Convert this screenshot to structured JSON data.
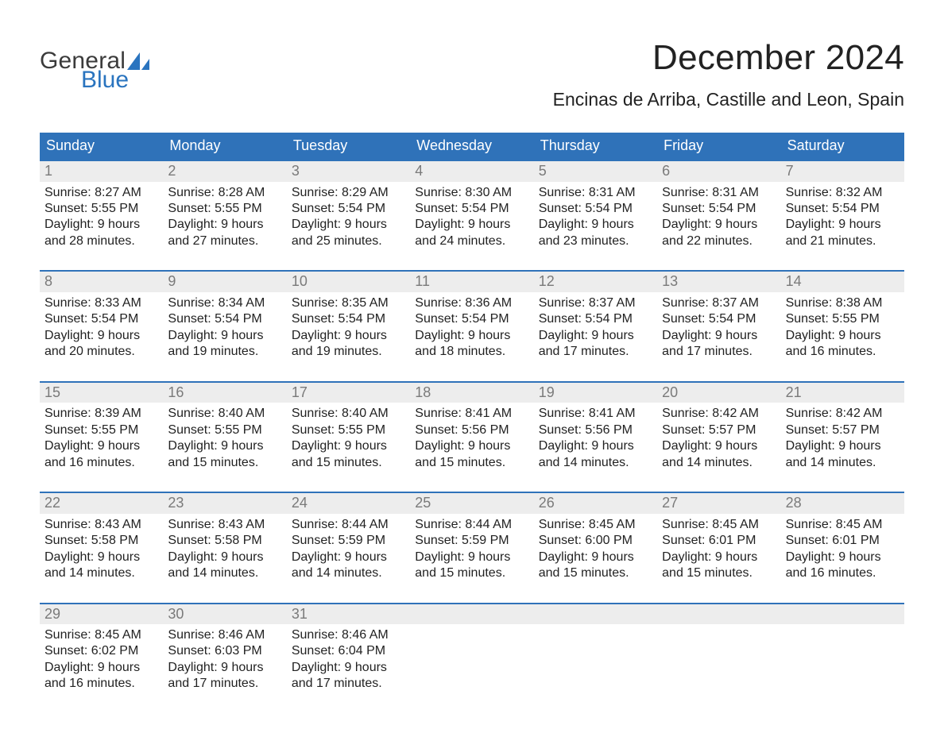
{
  "brand": {
    "logo_word_top": "General",
    "logo_word_bottom": "Blue",
    "logo_top_color": "#3b3b3b",
    "logo_bottom_color": "#2a74bf",
    "logo_triangle_color": "#2a74bf"
  },
  "header": {
    "month_title": "December 2024",
    "location": "Encinas de Arriba, Castille and Leon, Spain",
    "title_fontsize_pt": 33,
    "location_fontsize_pt": 17
  },
  "calendar": {
    "type": "table",
    "header_bg": "#2f72b9",
    "header_fg": "#ffffff",
    "week_rule_color": "#2f72b9",
    "daynum_bg": "#ededed",
    "daynum_fg": "#7a7a7a",
    "body_fg": "#222222",
    "background_color": "#ffffff",
    "body_fontsize_pt": 12,
    "header_fontsize_pt": 14,
    "daynum_fontsize_pt": 14,
    "columns": [
      "Sunday",
      "Monday",
      "Tuesday",
      "Wednesday",
      "Thursday",
      "Friday",
      "Saturday"
    ],
    "labels": {
      "sunrise_prefix": "Sunrise: ",
      "sunset_prefix": "Sunset: ",
      "daylight_prefix": "Daylight: ",
      "and_word": "and ",
      "minutes_suffix": " minutes."
    },
    "weeks": [
      [
        {
          "n": "1",
          "sunrise": "8:27 AM",
          "sunset": "5:55 PM",
          "dl_h": "9 hours",
          "dl_m": "28"
        },
        {
          "n": "2",
          "sunrise": "8:28 AM",
          "sunset": "5:55 PM",
          "dl_h": "9 hours",
          "dl_m": "27"
        },
        {
          "n": "3",
          "sunrise": "8:29 AM",
          "sunset": "5:54 PM",
          "dl_h": "9 hours",
          "dl_m": "25"
        },
        {
          "n": "4",
          "sunrise": "8:30 AM",
          "sunset": "5:54 PM",
          "dl_h": "9 hours",
          "dl_m": "24"
        },
        {
          "n": "5",
          "sunrise": "8:31 AM",
          "sunset": "5:54 PM",
          "dl_h": "9 hours",
          "dl_m": "23"
        },
        {
          "n": "6",
          "sunrise": "8:31 AM",
          "sunset": "5:54 PM",
          "dl_h": "9 hours",
          "dl_m": "22"
        },
        {
          "n": "7",
          "sunrise": "8:32 AM",
          "sunset": "5:54 PM",
          "dl_h": "9 hours",
          "dl_m": "21"
        }
      ],
      [
        {
          "n": "8",
          "sunrise": "8:33 AM",
          "sunset": "5:54 PM",
          "dl_h": "9 hours",
          "dl_m": "20"
        },
        {
          "n": "9",
          "sunrise": "8:34 AM",
          "sunset": "5:54 PM",
          "dl_h": "9 hours",
          "dl_m": "19"
        },
        {
          "n": "10",
          "sunrise": "8:35 AM",
          "sunset": "5:54 PM",
          "dl_h": "9 hours",
          "dl_m": "19"
        },
        {
          "n": "11",
          "sunrise": "8:36 AM",
          "sunset": "5:54 PM",
          "dl_h": "9 hours",
          "dl_m": "18"
        },
        {
          "n": "12",
          "sunrise": "8:37 AM",
          "sunset": "5:54 PM",
          "dl_h": "9 hours",
          "dl_m": "17"
        },
        {
          "n": "13",
          "sunrise": "8:37 AM",
          "sunset": "5:54 PM",
          "dl_h": "9 hours",
          "dl_m": "17"
        },
        {
          "n": "14",
          "sunrise": "8:38 AM",
          "sunset": "5:55 PM",
          "dl_h": "9 hours",
          "dl_m": "16"
        }
      ],
      [
        {
          "n": "15",
          "sunrise": "8:39 AM",
          "sunset": "5:55 PM",
          "dl_h": "9 hours",
          "dl_m": "16"
        },
        {
          "n": "16",
          "sunrise": "8:40 AM",
          "sunset": "5:55 PM",
          "dl_h": "9 hours",
          "dl_m": "15"
        },
        {
          "n": "17",
          "sunrise": "8:40 AM",
          "sunset": "5:55 PM",
          "dl_h": "9 hours",
          "dl_m": "15"
        },
        {
          "n": "18",
          "sunrise": "8:41 AM",
          "sunset": "5:56 PM",
          "dl_h": "9 hours",
          "dl_m": "15"
        },
        {
          "n": "19",
          "sunrise": "8:41 AM",
          "sunset": "5:56 PM",
          "dl_h": "9 hours",
          "dl_m": "14"
        },
        {
          "n": "20",
          "sunrise": "8:42 AM",
          "sunset": "5:57 PM",
          "dl_h": "9 hours",
          "dl_m": "14"
        },
        {
          "n": "21",
          "sunrise": "8:42 AM",
          "sunset": "5:57 PM",
          "dl_h": "9 hours",
          "dl_m": "14"
        }
      ],
      [
        {
          "n": "22",
          "sunrise": "8:43 AM",
          "sunset": "5:58 PM",
          "dl_h": "9 hours",
          "dl_m": "14"
        },
        {
          "n": "23",
          "sunrise": "8:43 AM",
          "sunset": "5:58 PM",
          "dl_h": "9 hours",
          "dl_m": "14"
        },
        {
          "n": "24",
          "sunrise": "8:44 AM",
          "sunset": "5:59 PM",
          "dl_h": "9 hours",
          "dl_m": "14"
        },
        {
          "n": "25",
          "sunrise": "8:44 AM",
          "sunset": "5:59 PM",
          "dl_h": "9 hours",
          "dl_m": "15"
        },
        {
          "n": "26",
          "sunrise": "8:45 AM",
          "sunset": "6:00 PM",
          "dl_h": "9 hours",
          "dl_m": "15"
        },
        {
          "n": "27",
          "sunrise": "8:45 AM",
          "sunset": "6:01 PM",
          "dl_h": "9 hours",
          "dl_m": "15"
        },
        {
          "n": "28",
          "sunrise": "8:45 AM",
          "sunset": "6:01 PM",
          "dl_h": "9 hours",
          "dl_m": "16"
        }
      ],
      [
        {
          "n": "29",
          "sunrise": "8:45 AM",
          "sunset": "6:02 PM",
          "dl_h": "9 hours",
          "dl_m": "16"
        },
        {
          "n": "30",
          "sunrise": "8:46 AM",
          "sunset": "6:03 PM",
          "dl_h": "9 hours",
          "dl_m": "17"
        },
        {
          "n": "31",
          "sunrise": "8:46 AM",
          "sunset": "6:04 PM",
          "dl_h": "9 hours",
          "dl_m": "17"
        },
        null,
        null,
        null,
        null
      ]
    ]
  }
}
